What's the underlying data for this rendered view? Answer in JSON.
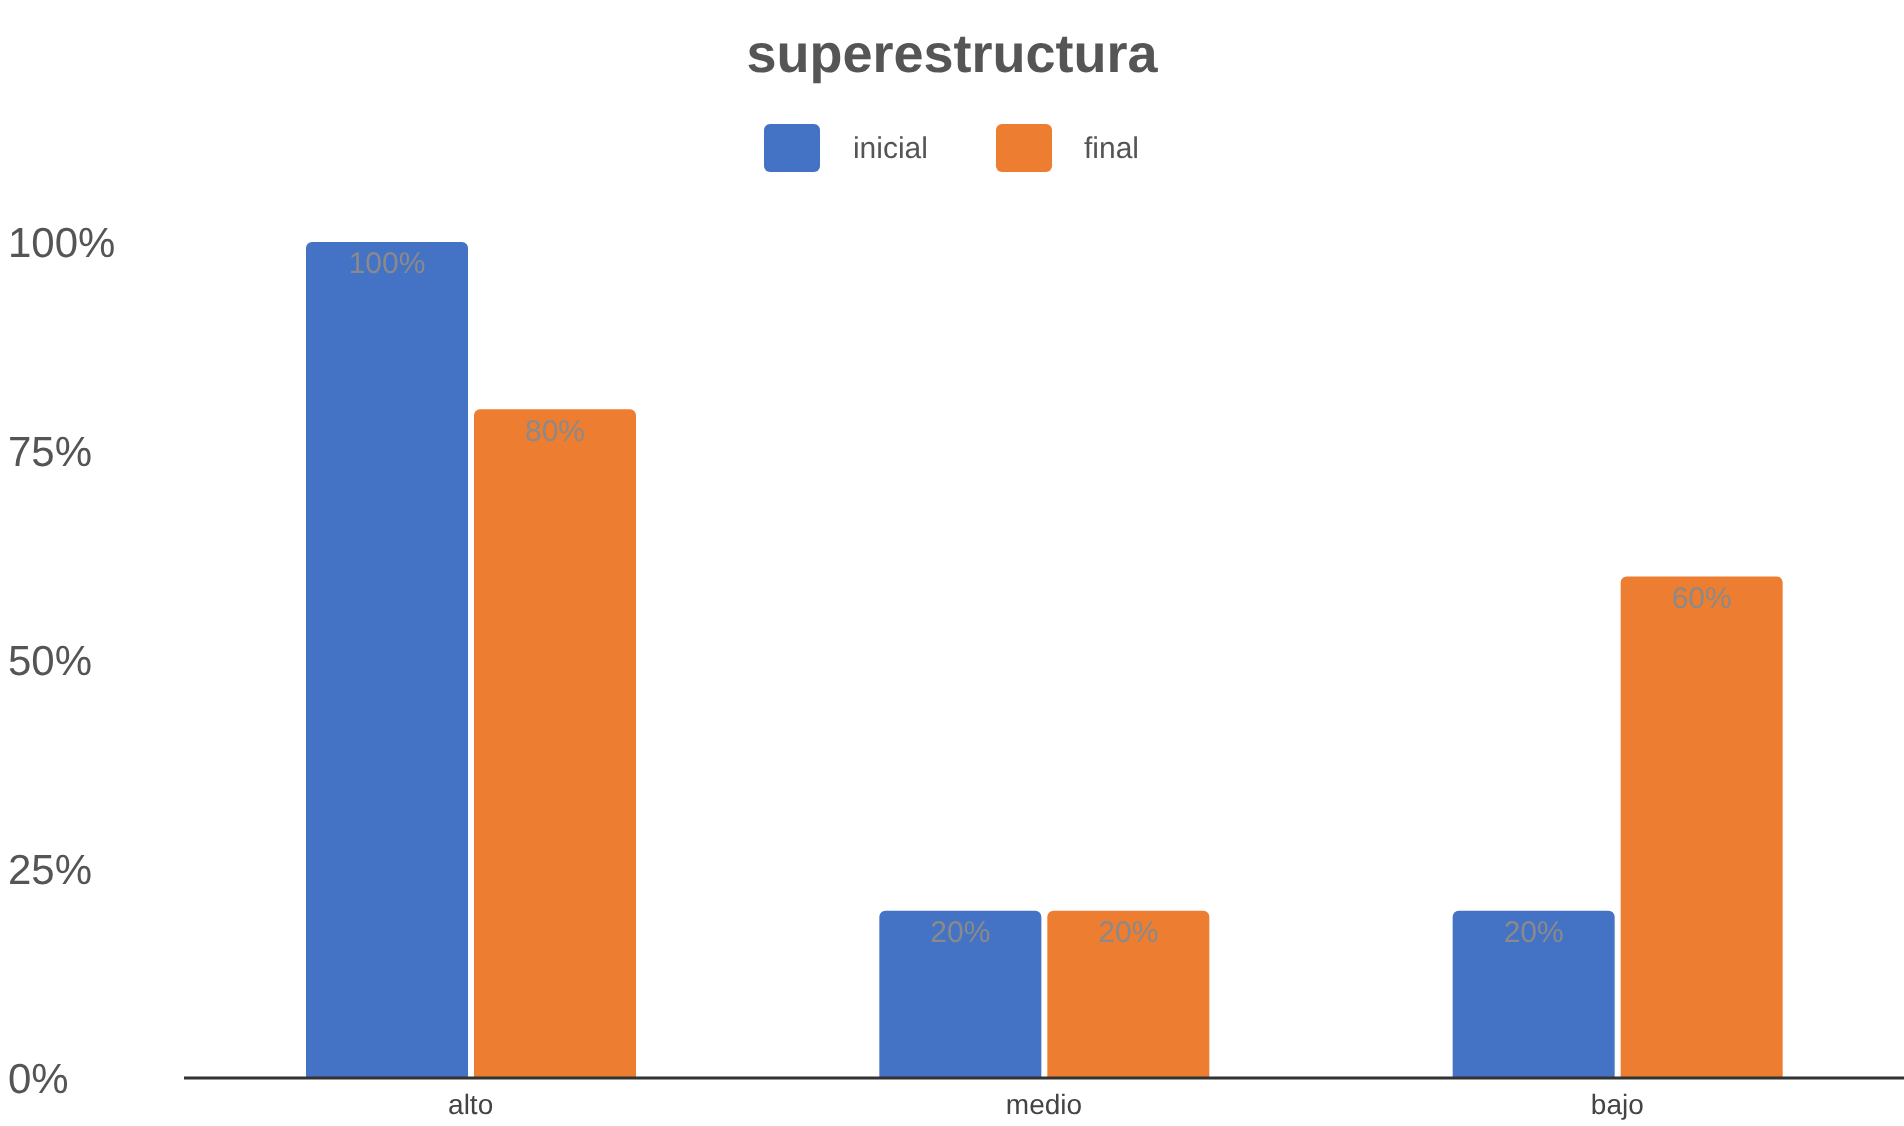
{
  "chart_data": {
    "type": "bar",
    "title": "superestructura",
    "categories": [
      "alto",
      "medio",
      "bajo"
    ],
    "series": [
      {
        "name": "inicial",
        "color": "#4472c4",
        "values": [
          100,
          20,
          20
        ],
        "value_labels": [
          "100%",
          "20%",
          "20%"
        ]
      },
      {
        "name": "final",
        "color": "#ed7d31",
        "values": [
          80,
          20,
          60
        ],
        "value_labels": [
          "80%",
          "20%",
          "60%"
        ]
      }
    ],
    "ylim": [
      0,
      100
    ],
    "yticks": [
      {
        "value": 0,
        "label": "0%"
      },
      {
        "value": 25,
        "label": "25%"
      },
      {
        "value": 50,
        "label": "50%"
      },
      {
        "value": 75,
        "label": "75%"
      },
      {
        "value": 100,
        "label": "100%"
      }
    ],
    "grid": false,
    "legend": "top"
  }
}
